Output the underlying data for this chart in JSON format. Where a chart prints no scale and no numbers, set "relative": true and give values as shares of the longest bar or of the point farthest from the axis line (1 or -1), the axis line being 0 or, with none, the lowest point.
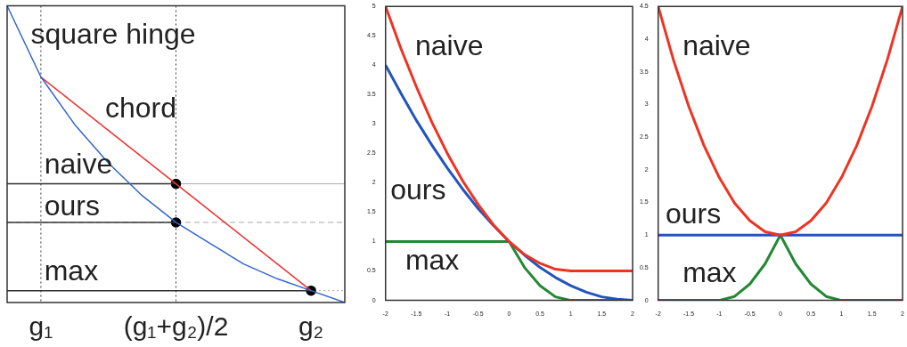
{
  "chart_data": [
    {
      "type": "line",
      "relative": true,
      "categories": [
        null,
        "g₁",
        null,
        null,
        null,
        "(g₁+g₂)/2",
        null,
        null,
        null,
        "g₂",
        null
      ],
      "tick_labels": "x",
      "marker": "none",
      "series": [
        {
          "name": "square hinge",
          "color": "#3366cc",
          "values": [
            1,
            0.76,
            0.6,
            0.47,
            0.36,
            0.27,
            0.2,
            0.13,
            0.08,
            0.04,
            0
          ]
        },
        {
          "name": "chord",
          "color": "#ee3333",
          "values": [
            null,
            0.76,
            0.67,
            0.58,
            0.49,
            0.4,
            0.31,
            0.22,
            0.13,
            0.04,
            null
          ]
        },
        {
          "color": "#333333",
          "values": [
            0.4,
            0.4,
            0.4,
            0.4,
            0.4,
            0.4,
            null,
            null,
            null,
            null,
            null
          ]
        },
        {
          "color": "#333333",
          "values": [
            0.27,
            0.27,
            0.27,
            0.27,
            0.27,
            0.27,
            null,
            null,
            null,
            null,
            null
          ]
        },
        {
          "color": "#333333",
          "values": [
            0.04,
            0.04,
            0.04,
            0.04,
            0.04,
            0.04,
            0.04,
            0.04,
            0.04,
            0.04,
            null
          ]
        },
        {
          "type": "scatter",
          "color": "#000000",
          "x": [
            "(g₁+g₂)/2",
            "(g₁+g₂)/2",
            "g₂"
          ],
          "values": [
            0.4,
            0.27,
            0.04
          ],
          "marker": "circle"
        }
      ],
      "ref_lines": [
        {
          "axis": "y",
          "value": 0.4,
          "label": "naive",
          "color": "#aaaaaa",
          "line_style": "solid"
        },
        {
          "axis": "y",
          "value": 0.27,
          "label": "ours",
          "color": "#aaaaaa",
          "line_style": "dashed"
        },
        {
          "axis": "y",
          "value": 0.04,
          "label": "max",
          "color": "#aaaaaa",
          "line_style": "dotted"
        },
        {
          "axis": "x",
          "value": "g₁",
          "color": "#333333",
          "line_style": "dotted"
        },
        {
          "axis": "x",
          "value": "(g₁+g₂)/2",
          "color": "#333333",
          "line_style": "dotted"
        }
      ]
    },
    {
      "type": "line",
      "xlim": [
        -2,
        2
      ],
      "xticks": [
        -2,
        -1.5,
        -1,
        -0.5,
        0,
        0.5,
        1,
        1.5,
        2
      ],
      "ylim": [
        0,
        5
      ],
      "yticks": [
        0,
        0.5,
        1,
        1.5,
        2,
        2.5,
        3,
        3.5,
        4,
        4.5,
        5
      ],
      "marker": "none",
      "x": [
        -2,
        -1.75,
        -1.5,
        -1.25,
        -1,
        -0.75,
        -0.5,
        -0.25,
        0,
        0.25,
        0.5,
        0.75,
        1,
        1.25,
        1.5,
        1.75,
        2
      ],
      "series": [
        {
          "name": "naive",
          "color": "#ee3322",
          "values": [
            5,
            4.28,
            3.63,
            3.03,
            2.5,
            2.03,
            1.63,
            1.28,
            1,
            0.78,
            0.63,
            0.53,
            0.5,
            0.5,
            0.5,
            0.5,
            0.5
          ]
        },
        {
          "name": "ours",
          "color": "#2255bb",
          "values": [
            4,
            3.52,
            3.06,
            2.64,
            2.25,
            1.89,
            1.56,
            1.27,
            1,
            0.77,
            0.56,
            0.39,
            0.25,
            0.14,
            0.06,
            0.02,
            0
          ]
        },
        {
          "name": "max",
          "color": "#228833",
          "values": [
            1,
            1,
            1,
            1,
            1,
            1,
            1,
            1,
            1,
            0.56,
            0.25,
            0.06,
            0,
            0,
            0,
            0,
            0
          ]
        }
      ]
    },
    {
      "type": "line",
      "xlim": [
        -2,
        2
      ],
      "xticks": [
        -2,
        -1.5,
        -1,
        -0.5,
        0,
        0.5,
        1,
        1.5,
        2
      ],
      "ylim": [
        0,
        4.5
      ],
      "yticks": [
        0,
        0.5,
        1,
        1.5,
        2,
        2.5,
        3,
        3.5,
        4,
        4.5
      ],
      "marker": "none",
      "x": [
        -2,
        -1.75,
        -1.5,
        -1.25,
        -1,
        -0.75,
        -0.5,
        -0.25,
        0,
        0.25,
        0.5,
        0.75,
        1,
        1.25,
        1.5,
        1.75,
        2
      ],
      "series": [
        {
          "name": "naive",
          "color": "#ee3322",
          "values": [
            4.5,
            3.68,
            2.97,
            2.37,
            1.88,
            1.49,
            1.22,
            1.05,
            1,
            1.05,
            1.22,
            1.49,
            1.88,
            2.37,
            2.97,
            3.68,
            4.5
          ]
        },
        {
          "name": "ours",
          "color": "#2255bb",
          "values": [
            1,
            1,
            1,
            1,
            1,
            1,
            1,
            1,
            1,
            1,
            1,
            1,
            1,
            1,
            1,
            1,
            1
          ]
        },
        {
          "name": "max",
          "color": "#228833",
          "values": [
            0,
            0,
            0,
            0,
            0,
            0.06,
            0.25,
            0.56,
            1,
            0.56,
            0.25,
            0.06,
            0,
            0,
            0,
            0,
            0
          ]
        }
      ]
    }
  ]
}
